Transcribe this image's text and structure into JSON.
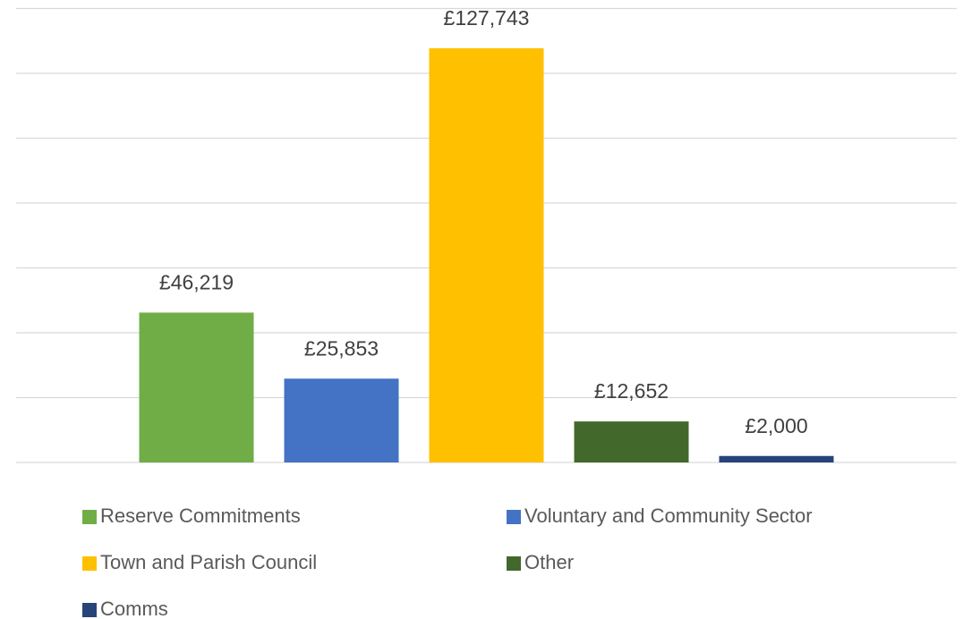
{
  "chart_data": {
    "type": "bar",
    "series": [
      {
        "name": "Reserve Commitments",
        "color": "#70ad47",
        "values": [
          46219
        ],
        "value_labels": [
          "£46,219"
        ]
      },
      {
        "name": "Voluntary and Community Sector",
        "color": "#4472c4",
        "values": [
          25853
        ],
        "value_labels": [
          "£25,853"
        ]
      },
      {
        "name": "Town and Parish Council",
        "color": "#ffc000",
        "values": [
          127743
        ],
        "value_labels": [
          "£127,743"
        ]
      },
      {
        "name": "Other",
        "color": "#43682b",
        "values": [
          12652
        ],
        "value_labels": [
          "£12,652"
        ]
      },
      {
        "name": "Comms",
        "color": "#264478",
        "values": [
          2000
        ],
        "value_labels": [
          "£2,000"
        ]
      }
    ],
    "ylim": [
      0,
      140000
    ],
    "yticks": [
      0,
      20000,
      40000,
      60000,
      80000,
      100000,
      120000,
      140000
    ],
    "grid": true,
    "legend": "bottom"
  }
}
